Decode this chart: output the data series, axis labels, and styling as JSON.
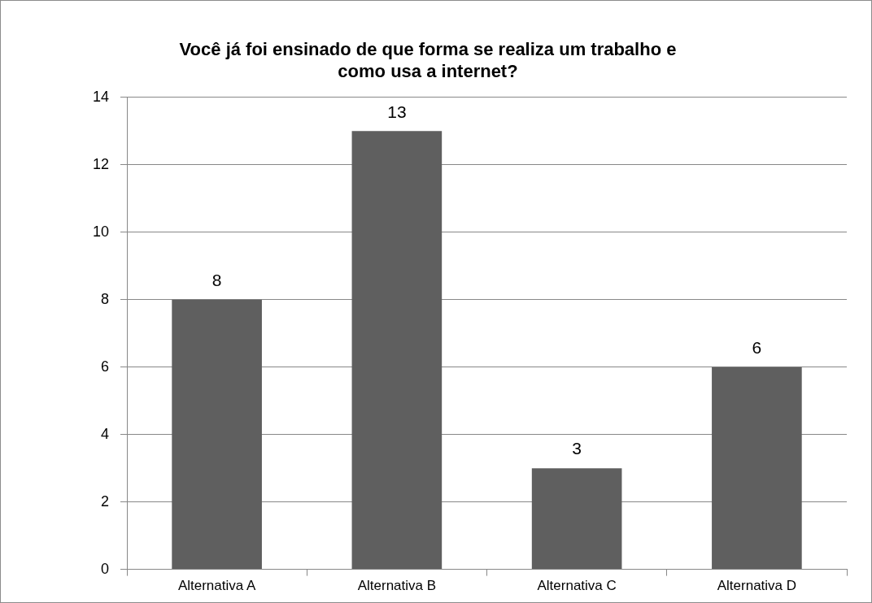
{
  "chart_data": {
    "type": "bar",
    "title": "Você já foi ensinado de que forma se realiza um trabalho e como usa a internet?",
    "categories": [
      "Alternativa A",
      "Alternativa B",
      "Alternativa C",
      "Alternativa D"
    ],
    "values": [
      8,
      13,
      3,
      6
    ],
    "color": "#5f5f5f",
    "ylim": [
      0,
      14
    ],
    "yticks": [
      0,
      2,
      4,
      6,
      8,
      10,
      12,
      14
    ],
    "grid": "y",
    "data_labels": true,
    "legend": false
  }
}
